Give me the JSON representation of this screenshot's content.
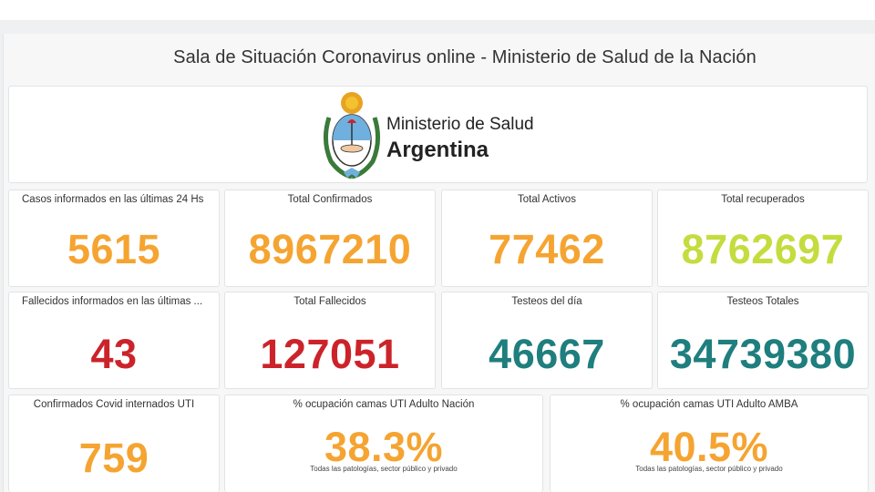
{
  "header": {
    "title": "Sala de Situación Coronavirus online - Ministerio de Salud de la Nación"
  },
  "logo": {
    "line1": "Ministerio de Salud",
    "line2": "Argentina"
  },
  "colors": {
    "orange": "#f5a431",
    "lime": "#c5dc3e",
    "red": "#cc232a",
    "teal": "#1f7e7e"
  },
  "stats": {
    "row1": [
      {
        "label": "Casos informados en las últimas 24 Hs",
        "value": "5615"
      },
      {
        "label": "Total Confirmados",
        "value": "8967210"
      },
      {
        "label": "Total Activos",
        "value": "77462"
      },
      {
        "label": "Total recuperados",
        "value": "8762697"
      }
    ],
    "row2": [
      {
        "label": "Fallecidos informados en las últimas ...",
        "value": "43"
      },
      {
        "label": "Total Fallecidos",
        "value": "127051"
      },
      {
        "label": "Testeos del día",
        "value": "46667"
      },
      {
        "label": "Testeos Totales",
        "value": "34739380"
      }
    ],
    "row3": [
      {
        "label": "Confirmados Covid internados UTI",
        "value": "759"
      },
      {
        "label": "% ocupación camas UTI Adulto Nación",
        "value": "38.3%",
        "sub": "Todas las patologías, sector público y privado"
      },
      {
        "label": "% ocupación camas UTI Adulto AMBA",
        "value": "40.5%",
        "sub": "Todas las patologías, sector público y privado"
      }
    ]
  }
}
